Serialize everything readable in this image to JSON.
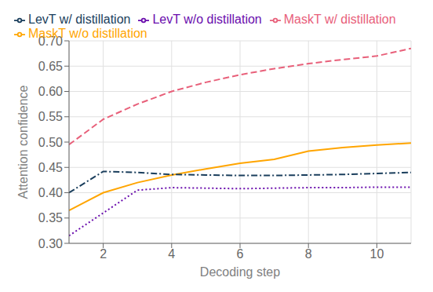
{
  "chart_data": {
    "type": "line",
    "xlabel": "Decoding step",
    "ylabel": "Attention confidence",
    "x": [
      1,
      2,
      3,
      4,
      5,
      6,
      7,
      8,
      9,
      10,
      11
    ],
    "xlim": [
      1,
      11
    ],
    "xticks": [
      2,
      4,
      6,
      8,
      10
    ],
    "ylim": [
      0.3,
      0.7
    ],
    "yticks": [
      {
        "value": 0.3,
        "label": "0.30"
      },
      0.35,
      {
        "value": 0.4,
        "label": "0.40"
      },
      0.45,
      {
        "value": 0.5,
        "label": "0.50"
      },
      0.55,
      {
        "value": 0.6,
        "label": "0.60"
      },
      0.65,
      {
        "value": 0.7,
        "label": "0.70"
      }
    ],
    "series": [
      {
        "name": "MaskT w/o distillation",
        "color": "#FFA500",
        "line_style": "solid",
        "values": [
          0.365,
          0.4,
          0.42,
          0.435,
          0.447,
          0.458,
          0.466,
          0.482,
          0.489,
          0.494,
          0.498
        ]
      },
      {
        "name": "MaskT w/ distillation",
        "color": "#E8607A",
        "line_style": "dashed",
        "values": [
          0.495,
          0.545,
          0.575,
          0.6,
          0.618,
          0.633,
          0.645,
          0.655,
          0.663,
          0.67,
          0.685
        ]
      },
      {
        "name": "LevT w/o distillation",
        "color": "#6A0DAD",
        "line_style": "dotted",
        "values": [
          0.315,
          0.36,
          0.405,
          0.41,
          0.409,
          0.408,
          0.409,
          0.41,
          0.41,
          0.411,
          0.411
        ]
      },
      {
        "name": "LevT w/ distillation",
        "color": "#1A3E5C",
        "line_style": "dashdot",
        "values": [
          0.4,
          0.442,
          0.44,
          0.436,
          0.435,
          0.434,
          0.434,
          0.435,
          0.436,
          0.438,
          0.44
        ]
      }
    ],
    "grid": true,
    "legend": "upper left"
  }
}
